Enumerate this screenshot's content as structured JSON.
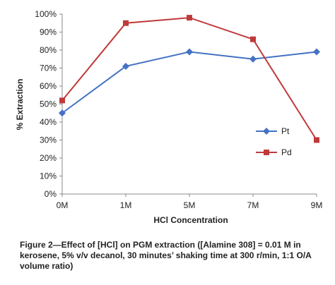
{
  "chart_data": {
    "type": "line",
    "categories": [
      "0M",
      "1M",
      "5M",
      "7M",
      "9M"
    ],
    "xlabel": "HCl Concentration",
    "ylabel": "% Extraction",
    "ylim": [
      0,
      100
    ],
    "yticks": [
      "0%",
      "10%",
      "20%",
      "30%",
      "40%",
      "50%",
      "60%",
      "70%",
      "80%",
      "90%",
      "100%"
    ],
    "grid": false,
    "legend_position": "right",
    "series": [
      {
        "name": "Pt",
        "values": [
          45,
          71,
          79,
          75,
          79
        ],
        "color": "#4472c4",
        "marker": "diamond"
      },
      {
        "name": "Pd",
        "values": [
          52,
          95,
          98,
          86,
          30
        ],
        "color": "#c0393a",
        "marker": "square"
      }
    ]
  },
  "caption": "Figure 2—Effect of [HCl] on PGM extraction ([Alamine 308] = 0.01 M in kerosene, 5% v/v decanol, 30 minutes’ shaking time at 300 r/min, 1:1 O/A volume ratio)"
}
